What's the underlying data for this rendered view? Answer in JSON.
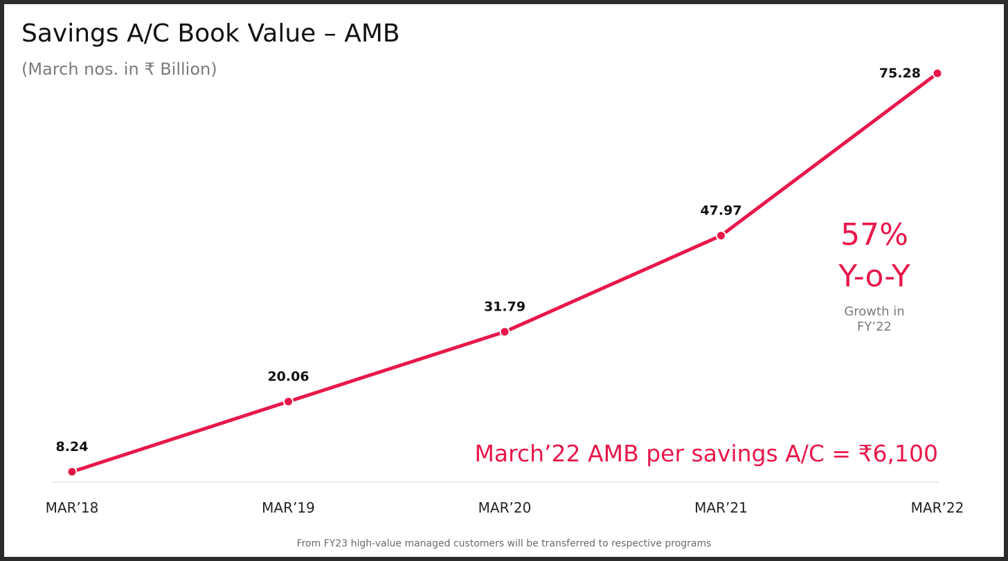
{
  "slide": {
    "title": "Savings A/C Book Value – AMB",
    "subtitle": "(March nos. in ₹ Billion)",
    "growth_pct": "57%",
    "growth_label": "Y-o-Y",
    "growth_caption_line1": "Growth in",
    "growth_caption_line2": "FY’22",
    "amb_note": "March’22 AMB per savings A/C = ₹6,100",
    "footnote": "From FY23 high-value managed customers will be transferred to respective programs"
  },
  "colors": {
    "accent": "#e8174a",
    "title": "#111111",
    "muted": "#7a7a7a",
    "axis": "#d4d4d4"
  },
  "chart_data": {
    "type": "line",
    "title": "Savings A/C Book Value – AMB",
    "subtitle": "(March nos. in ₹ Billion)",
    "categories": [
      "MAR’18",
      "MAR’19",
      "MAR’20",
      "MAR’21",
      "MAR’22"
    ],
    "series": [
      {
        "values": [
          8.24,
          20.06,
          31.79,
          47.97,
          75.28
        ],
        "labels": [
          "8.24",
          "20.06",
          "31.79",
          "47.97",
          "75.28"
        ],
        "color": "#e8174a"
      }
    ],
    "xlabel": "",
    "ylabel": "",
    "ylim": [
      0,
      75.28
    ],
    "grid": false,
    "legend": "none"
  }
}
